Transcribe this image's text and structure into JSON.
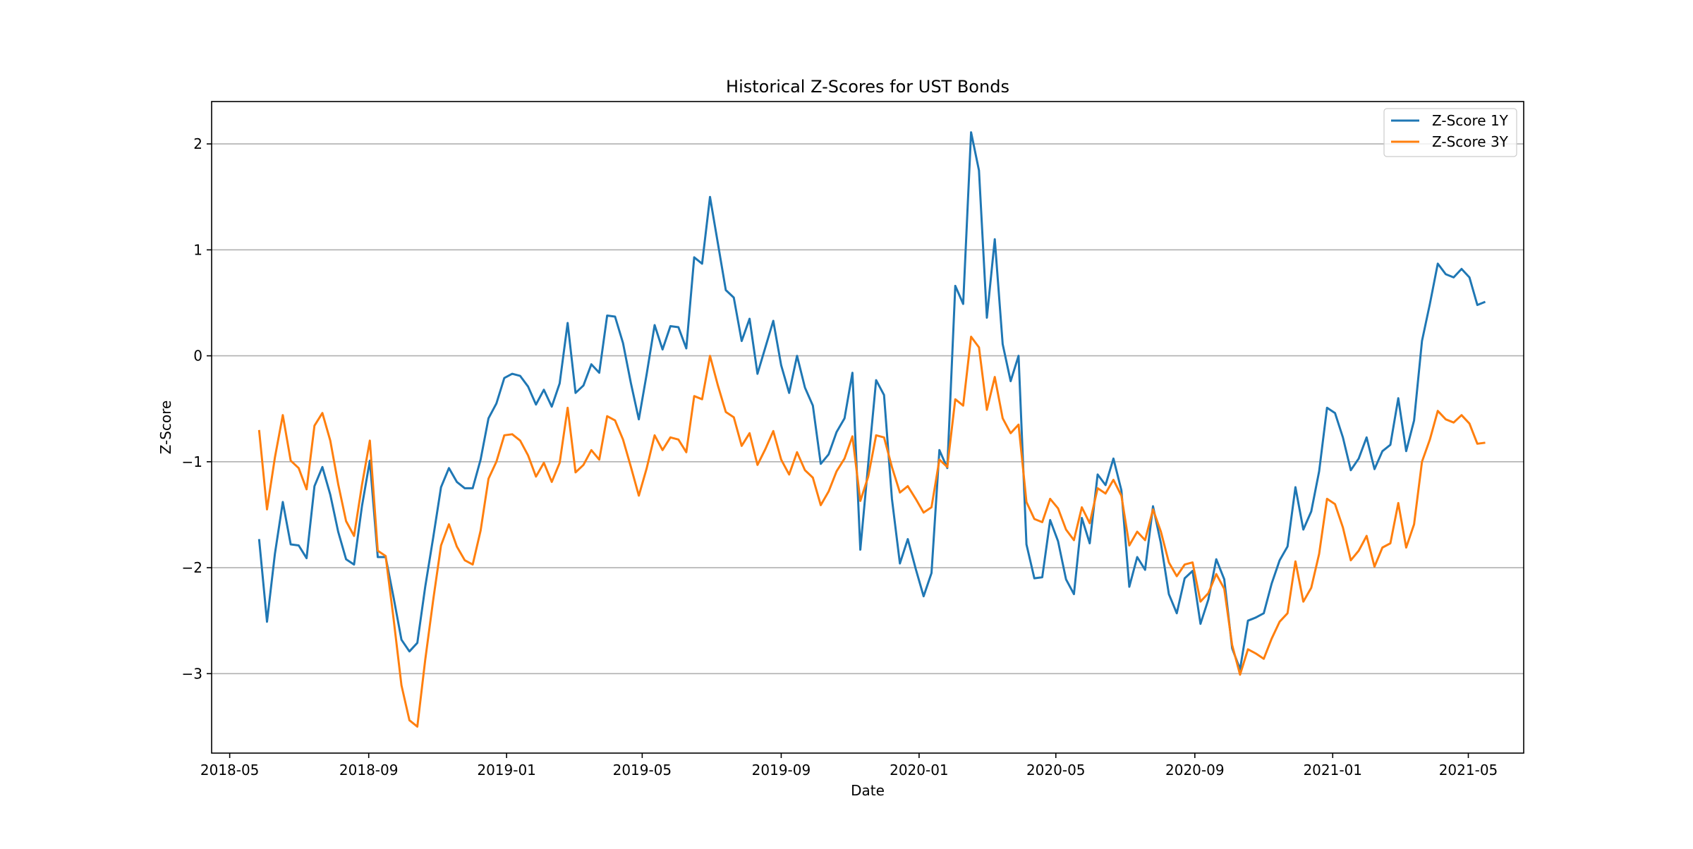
{
  "chart_data": {
    "type": "line",
    "title": "Historical Z-Scores for UST Bonds",
    "xlabel": "Date",
    "ylabel": "Z-Score",
    "xlim": [
      "2018-04-15",
      "2021-06-19"
    ],
    "ylim": [
      -3.75,
      2.4
    ],
    "grid": "y",
    "legend_position": "top-right",
    "x_tick_labels": [
      "2018-05",
      "2018-09",
      "2019-01",
      "2019-05",
      "2019-09",
      "2020-01",
      "2020-05",
      "2020-09",
      "2021-01",
      "2021-05"
    ],
    "y_tick_values": [
      2,
      1,
      0,
      -1,
      -2,
      -3
    ],
    "y_tick_labels": [
      "2",
      "1",
      "0",
      "−1",
      "−2",
      "−3"
    ],
    "x": [
      "2018-05-27",
      "2018-06-03",
      "2018-06-10",
      "2018-06-17",
      "2018-06-24",
      "2018-07-01",
      "2018-07-08",
      "2018-07-15",
      "2018-07-22",
      "2018-07-29",
      "2018-08-05",
      "2018-08-12",
      "2018-08-19",
      "2018-08-26",
      "2018-09-02",
      "2018-09-09",
      "2018-09-16",
      "2018-09-23",
      "2018-09-30",
      "2018-10-07",
      "2018-10-14",
      "2018-10-21",
      "2018-10-28",
      "2018-11-04",
      "2018-11-11",
      "2018-11-18",
      "2018-11-25",
      "2018-12-02",
      "2018-12-09",
      "2018-12-16",
      "2018-12-23",
      "2018-12-30",
      "2019-01-06",
      "2019-01-13",
      "2019-01-20",
      "2019-01-27",
      "2019-02-03",
      "2019-02-10",
      "2019-02-17",
      "2019-02-24",
      "2019-03-03",
      "2019-03-10",
      "2019-03-17",
      "2019-03-24",
      "2019-03-31",
      "2019-04-07",
      "2019-04-14",
      "2019-04-21",
      "2019-04-28",
      "2019-05-05",
      "2019-05-12",
      "2019-05-19",
      "2019-05-26",
      "2019-06-02",
      "2019-06-09",
      "2019-06-16",
      "2019-06-23",
      "2019-06-30",
      "2019-07-07",
      "2019-07-14",
      "2019-07-21",
      "2019-07-28",
      "2019-08-04",
      "2019-08-11",
      "2019-08-18",
      "2019-08-25",
      "2019-09-01",
      "2019-09-08",
      "2019-09-15",
      "2019-09-22",
      "2019-09-29",
      "2019-10-06",
      "2019-10-13",
      "2019-10-20",
      "2019-10-27",
      "2019-11-03",
      "2019-11-10",
      "2019-11-17",
      "2019-11-24",
      "2019-12-01",
      "2019-12-08",
      "2019-12-15",
      "2019-12-22",
      "2019-12-29",
      "2020-01-05",
      "2020-01-12",
      "2020-01-19",
      "2020-01-26",
      "2020-02-02",
      "2020-02-09",
      "2020-02-16",
      "2020-02-23",
      "2020-03-01",
      "2020-03-08",
      "2020-03-15",
      "2020-03-22",
      "2020-03-29",
      "2020-04-05",
      "2020-04-12",
      "2020-04-19",
      "2020-04-26",
      "2020-05-03",
      "2020-05-10",
      "2020-05-17",
      "2020-05-24",
      "2020-05-31",
      "2020-06-07",
      "2020-06-14",
      "2020-06-21",
      "2020-06-28",
      "2020-07-05",
      "2020-07-12",
      "2020-07-19",
      "2020-07-26",
      "2020-08-02",
      "2020-08-09",
      "2020-08-16",
      "2020-08-23",
      "2020-08-30",
      "2020-09-06",
      "2020-09-13",
      "2020-09-20",
      "2020-09-27",
      "2020-10-04",
      "2020-10-11",
      "2020-10-18",
      "2020-10-25",
      "2020-11-01",
      "2020-11-08",
      "2020-11-15",
      "2020-11-22",
      "2020-11-29",
      "2020-12-06",
      "2020-12-13",
      "2020-12-20",
      "2020-12-27",
      "2021-01-03",
      "2021-01-10",
      "2021-01-17",
      "2021-01-24",
      "2021-01-31",
      "2021-02-07",
      "2021-02-14",
      "2021-02-21",
      "2021-02-28",
      "2021-03-07",
      "2021-03-14",
      "2021-03-21",
      "2021-03-28",
      "2021-04-04",
      "2021-04-11",
      "2021-04-18",
      "2021-04-25",
      "2021-05-02",
      "2021-05-09",
      "2021-05-16"
    ],
    "series": [
      {
        "name": "Z-Score 1Y",
        "color": "#1f77b4",
        "values": [
          -1.73,
          -2.51,
          -1.87,
          -1.38,
          -1.78,
          -1.79,
          -1.91,
          -1.23,
          -1.05,
          -1.31,
          -1.66,
          -1.92,
          -1.97,
          -1.42,
          -0.99,
          -1.9,
          -1.9,
          -2.28,
          -2.68,
          -2.79,
          -2.71,
          -2.18,
          -1.72,
          -1.24,
          -1.06,
          -1.19,
          -1.25,
          -1.25,
          -0.98,
          -0.59,
          -0.45,
          -0.21,
          -0.17,
          -0.19,
          -0.29,
          -0.46,
          -0.32,
          -0.48,
          -0.26,
          0.31,
          -0.35,
          -0.28,
          -0.08,
          -0.16,
          0.38,
          0.37,
          0.12,
          -0.26,
          -0.6,
          -0.17,
          0.29,
          0.06,
          0.28,
          0.27,
          0.07,
          0.93,
          0.87,
          1.5,
          1.06,
          0.62,
          0.55,
          0.14,
          0.35,
          -0.17,
          0.08,
          0.33,
          -0.09,
          -0.35,
          0.0,
          -0.3,
          -0.47,
          -1.02,
          -0.93,
          -0.72,
          -0.59,
          -0.16,
          -1.83,
          -1.02,
          -0.23,
          -0.37,
          -1.35,
          -1.96,
          -1.73,
          -2.01,
          -2.27,
          -2.05,
          -0.89,
          -1.06,
          0.66,
          0.49,
          2.11,
          1.75,
          0.36,
          1.1,
          0.11,
          -0.24,
          0.0,
          -1.78,
          -2.1,
          -2.09,
          -1.55,
          -1.75,
          -2.11,
          -2.25,
          -1.53,
          -1.77,
          -1.12,
          -1.22,
          -0.97,
          -1.27,
          -2.18,
          -1.9,
          -2.02,
          -1.42,
          -1.77,
          -2.25,
          -2.43,
          -2.1,
          -2.03,
          -2.53,
          -2.3,
          -1.92,
          -2.11,
          -2.76,
          -2.96,
          -2.5,
          -2.47,
          -2.43,
          -2.15,
          -1.93,
          -1.8,
          -1.24,
          -1.64,
          -1.47,
          -1.09,
          -0.49,
          -0.54,
          -0.77,
          -1.08,
          -0.97,
          -0.77,
          -1.07,
          -0.9,
          -0.84,
          -0.4,
          -0.9,
          -0.61,
          0.14,
          0.49,
          0.87,
          0.77,
          0.74,
          0.82,
          0.74,
          0.48,
          0.51
        ]
      },
      {
        "name": "Z-Score 3Y",
        "color": "#ff7f0e",
        "values": [
          -0.7,
          -1.45,
          -0.96,
          -0.56,
          -0.99,
          -1.06,
          -1.26,
          -0.66,
          -0.54,
          -0.8,
          -1.21,
          -1.56,
          -1.7,
          -1.22,
          -0.8,
          -1.84,
          -1.89,
          -2.48,
          -3.11,
          -3.44,
          -3.5,
          -2.87,
          -2.31,
          -1.79,
          -1.59,
          -1.8,
          -1.93,
          -1.97,
          -1.65,
          -1.16,
          -1.0,
          -0.75,
          -0.74,
          -0.8,
          -0.94,
          -1.14,
          -1.01,
          -1.19,
          -1.01,
          -0.49,
          -1.1,
          -1.03,
          -0.89,
          -0.98,
          -0.57,
          -0.61,
          -0.79,
          -1.05,
          -1.32,
          -1.06,
          -0.75,
          -0.89,
          -0.77,
          -0.79,
          -0.91,
          -0.38,
          -0.41,
          0.0,
          -0.28,
          -0.53,
          -0.58,
          -0.85,
          -0.73,
          -1.03,
          -0.88,
          -0.71,
          -0.98,
          -1.12,
          -0.91,
          -1.08,
          -1.15,
          -1.41,
          -1.28,
          -1.09,
          -0.97,
          -0.76,
          -1.37,
          -1.14,
          -0.75,
          -0.77,
          -1.05,
          -1.29,
          -1.23,
          -1.35,
          -1.48,
          -1.43,
          -0.98,
          -1.05,
          -0.41,
          -0.47,
          0.18,
          0.08,
          -0.51,
          -0.2,
          -0.59,
          -0.73,
          -0.65,
          -1.38,
          -1.54,
          -1.57,
          -1.35,
          -1.44,
          -1.64,
          -1.74,
          -1.43,
          -1.58,
          -1.25,
          -1.3,
          -1.17,
          -1.32,
          -1.79,
          -1.66,
          -1.74,
          -1.45,
          -1.66,
          -1.95,
          -2.08,
          -1.97,
          -1.95,
          -2.32,
          -2.24,
          -2.06,
          -2.2,
          -2.73,
          -3.01,
          -2.77,
          -2.81,
          -2.86,
          -2.67,
          -2.51,
          -2.43,
          -1.94,
          -2.32,
          -2.19,
          -1.87,
          -1.35,
          -1.4,
          -1.62,
          -1.93,
          -1.84,
          -1.7,
          -1.99,
          -1.81,
          -1.77,
          -1.39,
          -1.81,
          -1.59,
          -1.0,
          -0.79,
          -0.52,
          -0.6,
          -0.63,
          -0.56,
          -0.64,
          -0.83,
          -0.82
        ]
      }
    ]
  }
}
